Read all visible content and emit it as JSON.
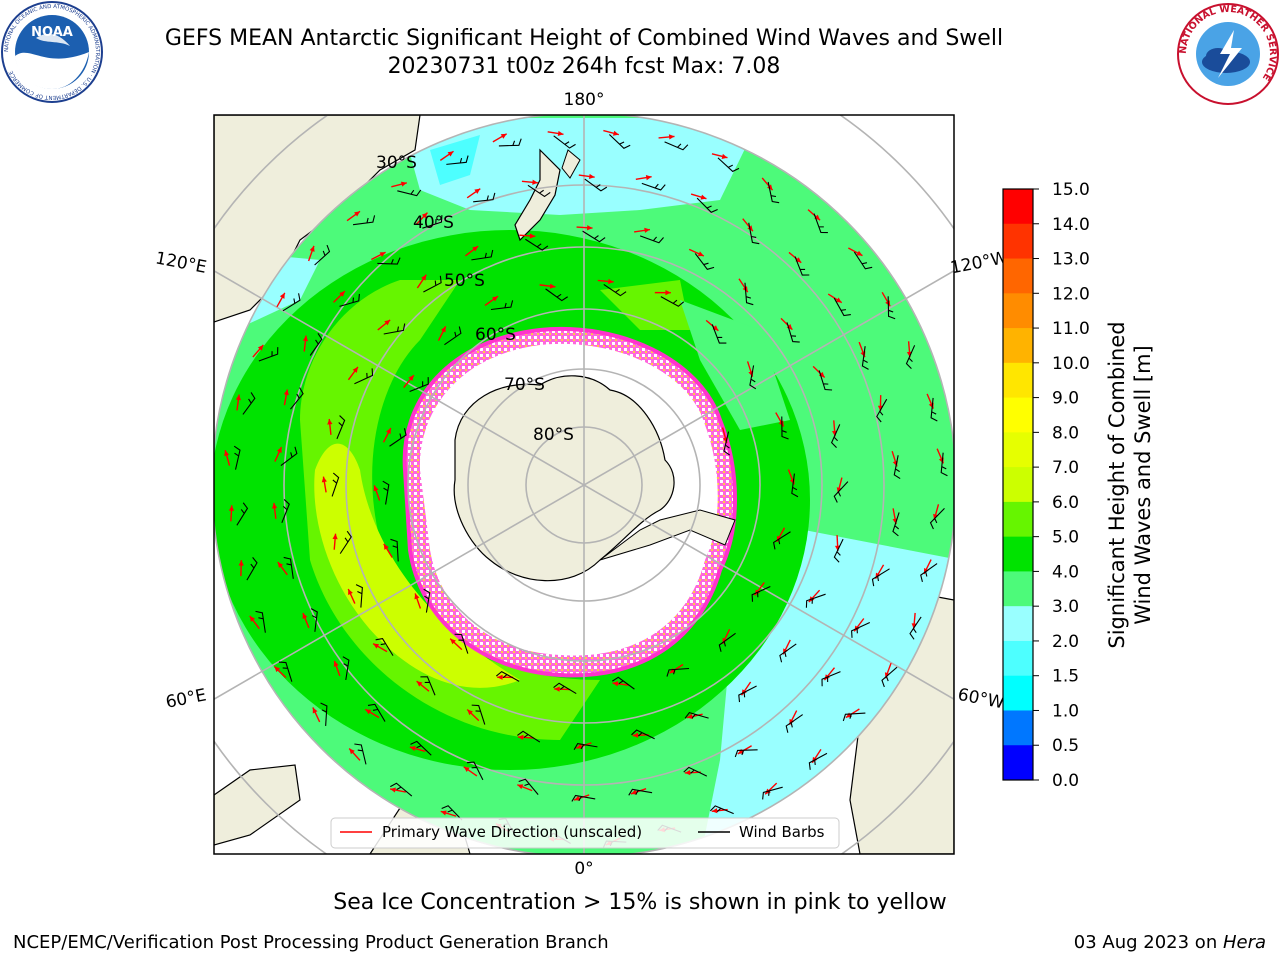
{
  "title": {
    "line1": "GEFS MEAN Antarctic Significant Height of Combined Wind Waves and Swell",
    "line2": "20230731 t00z 264h fcst   Max: 7.08"
  },
  "logos": {
    "left": {
      "name": "NOAA",
      "text": "NOAA",
      "ring_text": "NATIONAL OCEANIC AND ATMOSPHERIC ADMINISTRATION · U.S. DEPARTMENT OF COMMERCE"
    },
    "right": {
      "name": "National Weather Service",
      "ring_text": "NATIONAL WEATHER SERVICE"
    }
  },
  "map": {
    "projection": "south-polar-stereographic",
    "lat_labels": [
      "30°S",
      "40°S",
      "50°S",
      "60°S",
      "70°S",
      "80°S"
    ],
    "lon_labels": {
      "top": "180°",
      "bottom": "0°",
      "upper_left": "120°E",
      "upper_right": "120°W",
      "lower_left": "60°E",
      "lower_right": "60°W"
    },
    "colors": {
      "land": "#efeedc",
      "ocean_low": "#99ffff",
      "ocean_mid": "#4dfa7a",
      "ocean_high": "#00e300",
      "ocean_very_high": "#66f500",
      "ocean_peak": "#ccff00",
      "ice": "#ffffff",
      "ice_edge": "#ff33cc",
      "wave_arrow": "#ff0000",
      "wind_barb": "#000000",
      "grid": "#b4b4b4"
    }
  },
  "legend": {
    "items": [
      {
        "label": "Primary Wave Direction (unscaled)",
        "color": "#ff0000"
      },
      {
        "label": "Wind Barbs",
        "color": "#000000"
      }
    ]
  },
  "colorbar": {
    "label_line1": "Significant Height of Combined",
    "label_line2": "Wind Waves and Swell [m]",
    "ticks": [
      "0.0",
      "0.5",
      "1.0",
      "1.5",
      "2.0",
      "3.0",
      "4.0",
      "5.0",
      "6.0",
      "7.0",
      "8.0",
      "9.0",
      "10.0",
      "11.0",
      "12.0",
      "13.0",
      "14.0",
      "15.0"
    ],
    "colors": [
      "#0000ff",
      "#0077ff",
      "#00ffff",
      "#4dffff",
      "#99ffff",
      "#4dfa7a",
      "#00e300",
      "#66f500",
      "#ccff00",
      "#e6ff00",
      "#ffff00",
      "#ffe600",
      "#ffb300",
      "#ff8c00",
      "#ff6600",
      "#ff3300",
      "#ff0000"
    ]
  },
  "caption": "Sea Ice Concentration > 15% is shown in pink to yellow",
  "credit": {
    "left": "NCEP/EMC/Verification Post Processing Product Generation Branch",
    "right_date": "03 Aug 2023 on ",
    "right_host": "Hera"
  }
}
